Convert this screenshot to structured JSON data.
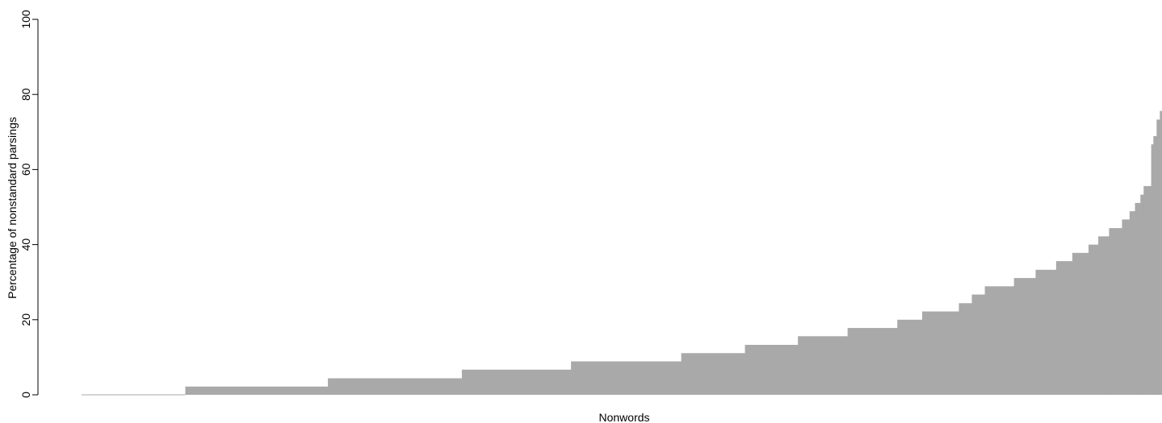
{
  "chart_data": {
    "type": "area",
    "title": "",
    "xlabel": "Nonwords",
    "ylabel": "Percentage of nonstandard parsings",
    "ylim": [
      0,
      100
    ],
    "yticks": [
      "0",
      "20",
      "40",
      "60",
      "80",
      "100"
    ],
    "grid": false,
    "legend": "none",
    "color": "#a9a9a9",
    "note": "Sorted stepwise distribution; x is nonword rank (0-100% of nonwords along the axis), y is percentage.",
    "steps": [
      {
        "x_start": 0.0,
        "x_end": 9.6,
        "y": 0.0
      },
      {
        "x_start": 9.6,
        "x_end": 22.8,
        "y": 2.2
      },
      {
        "x_start": 22.8,
        "x_end": 35.2,
        "y": 4.4
      },
      {
        "x_start": 35.2,
        "x_end": 45.3,
        "y": 6.7
      },
      {
        "x_start": 45.3,
        "x_end": 55.5,
        "y": 8.9
      },
      {
        "x_start": 55.5,
        "x_end": 61.4,
        "y": 11.1
      },
      {
        "x_start": 61.4,
        "x_end": 66.3,
        "y": 13.3
      },
      {
        "x_start": 66.3,
        "x_end": 70.9,
        "y": 15.6
      },
      {
        "x_start": 70.9,
        "x_end": 75.5,
        "y": 17.8
      },
      {
        "x_start": 75.5,
        "x_end": 77.8,
        "y": 20.0
      },
      {
        "x_start": 77.8,
        "x_end": 81.2,
        "y": 22.2
      },
      {
        "x_start": 81.2,
        "x_end": 82.4,
        "y": 24.4
      },
      {
        "x_start": 82.4,
        "x_end": 83.6,
        "y": 26.7
      },
      {
        "x_start": 83.6,
        "x_end": 86.3,
        "y": 28.9
      },
      {
        "x_start": 86.3,
        "x_end": 88.3,
        "y": 31.1
      },
      {
        "x_start": 88.3,
        "x_end": 90.2,
        "y": 33.3
      },
      {
        "x_start": 90.2,
        "x_end": 91.7,
        "y": 35.6
      },
      {
        "x_start": 91.7,
        "x_end": 93.2,
        "y": 37.8
      },
      {
        "x_start": 93.2,
        "x_end": 94.1,
        "y": 40.0
      },
      {
        "x_start": 94.1,
        "x_end": 95.1,
        "y": 42.2
      },
      {
        "x_start": 95.1,
        "x_end": 96.3,
        "y": 44.4
      },
      {
        "x_start": 96.3,
        "x_end": 97.0,
        "y": 46.7
      },
      {
        "x_start": 97.0,
        "x_end": 97.5,
        "y": 48.9
      },
      {
        "x_start": 97.5,
        "x_end": 98.0,
        "y": 51.1
      },
      {
        "x_start": 98.0,
        "x_end": 98.3,
        "y": 53.3
      },
      {
        "x_start": 98.3,
        "x_end": 99.0,
        "y": 55.6
      },
      {
        "x_start": 99.0,
        "x_end": 99.2,
        "y": 66.7
      },
      {
        "x_start": 99.2,
        "x_end": 99.5,
        "y": 68.9
      },
      {
        "x_start": 99.5,
        "x_end": 99.8,
        "y": 73.3
      },
      {
        "x_start": 99.8,
        "x_end": 100.0,
        "y": 75.6
      }
    ]
  }
}
